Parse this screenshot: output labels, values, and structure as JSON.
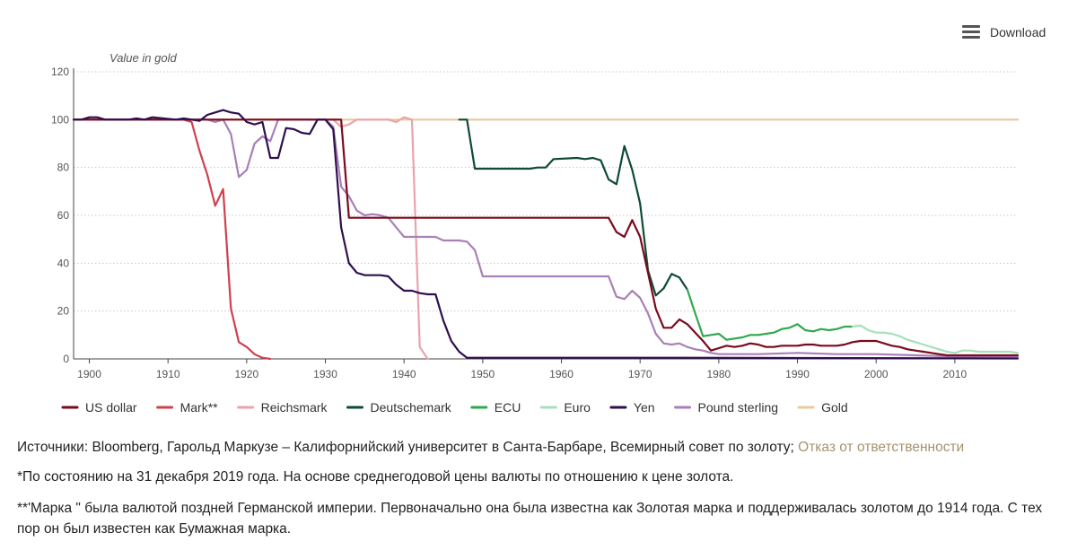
{
  "download": {
    "label": "Download",
    "icon": "hamburger-menu-icon"
  },
  "notes": {
    "sources_text": "Источники: Bloomberg, Гарольд Маркузе – Калифорнийский университет в Санта-Барбаре, Всемирный совет по золоту;",
    "disclaimer_link": "Отказ от ответственности",
    "footnote1": "*По состоянию на 31 декабря 2019 года. На основе среднегодовой цены валюты по отношению к цене золота.",
    "footnote2": "**'Марка \" была валютой поздней Германской империи. Первоначально она была известна как Золотая марка и поддерживалась золотом до 1914 года. С тех пор он был известен как Бумажная марка."
  },
  "chart_data": {
    "type": "line",
    "title": "",
    "ylabel": "Value in gold",
    "xlabel": "",
    "xlim": [
      1898,
      2018
    ],
    "ylim": [
      0,
      120
    ],
    "x_ticks": [
      1900,
      1910,
      1920,
      1930,
      1940,
      1950,
      1960,
      1970,
      1980,
      1990,
      2000,
      2010
    ],
    "y_ticks": [
      0,
      20,
      40,
      60,
      80,
      100,
      120
    ],
    "grid": "horizontal dotted",
    "legend_position": "bottom",
    "series": [
      {
        "name": "Gold",
        "color": "#e9c99d",
        "points": [
          [
            1898,
            100
          ],
          [
            2018,
            100
          ]
        ]
      },
      {
        "name": "Mark**",
        "color": "#d0404f",
        "points": [
          [
            1898,
            100
          ],
          [
            1912,
            100
          ],
          [
            1913,
            99
          ],
          [
            1914,
            87
          ],
          [
            1915,
            77
          ],
          [
            1916,
            64
          ],
          [
            1917,
            71
          ],
          [
            1918,
            21
          ],
          [
            1919,
            7
          ],
          [
            1920,
            5
          ],
          [
            1921,
            2
          ],
          [
            1922,
            0.5
          ],
          [
            1923,
            0
          ]
        ]
      },
      {
        "name": "Reichsmark",
        "color": "#eba3aa",
        "points": [
          [
            1924,
            100
          ],
          [
            1930,
            100
          ],
          [
            1931,
            100
          ],
          [
            1932,
            97
          ],
          [
            1933,
            98
          ],
          [
            1934,
            100
          ],
          [
            1938,
            100
          ],
          [
            1939,
            99
          ],
          [
            1940,
            101
          ],
          [
            1941,
            100
          ],
          [
            1942,
            5
          ],
          [
            1943,
            0
          ]
        ]
      },
      {
        "name": "Deutschemark",
        "color": "#0f4a33",
        "points": [
          [
            1947,
            100
          ],
          [
            1948,
            100
          ],
          [
            1949,
            79.5
          ],
          [
            1956,
            79.5
          ],
          [
            1957,
            80
          ],
          [
            1958,
            80
          ],
          [
            1959,
            83.5
          ],
          [
            1962,
            84
          ],
          [
            1963,
            83.5
          ],
          [
            1964,
            84
          ],
          [
            1965,
            83
          ],
          [
            1966,
            75
          ],
          [
            1967,
            73
          ],
          [
            1968,
            89
          ],
          [
            1969,
            79
          ],
          [
            1970,
            65
          ],
          [
            1971,
            37
          ],
          [
            1972,
            26.5
          ],
          [
            1973,
            29.5
          ],
          [
            1974,
            35.5
          ],
          [
            1975,
            34
          ],
          [
            1976,
            29
          ]
        ]
      },
      {
        "name": "ECU",
        "color": "#2fa84f",
        "points": [
          [
            1976,
            29
          ],
          [
            1977,
            19
          ],
          [
            1978,
            9.5
          ],
          [
            1979,
            10
          ],
          [
            1980,
            10.5
          ],
          [
            1981,
            8
          ],
          [
            1982,
            8.5
          ],
          [
            1983,
            9
          ],
          [
            1984,
            10
          ],
          [
            1985,
            10
          ],
          [
            1986,
            10.5
          ],
          [
            1987,
            11
          ],
          [
            1988,
            12.5
          ],
          [
            1989,
            13
          ],
          [
            1990,
            14.5
          ],
          [
            1991,
            12
          ],
          [
            1992,
            11.5
          ],
          [
            1993,
            12.5
          ],
          [
            1994,
            12
          ],
          [
            1995,
            12.5
          ],
          [
            1996,
            13.5
          ],
          [
            1997,
            13.5
          ]
        ]
      },
      {
        "name": "Euro",
        "color": "#a6e0b8",
        "points": [
          [
            1997,
            13.5
          ],
          [
            1998,
            14
          ],
          [
            1999,
            12
          ],
          [
            2000,
            11
          ],
          [
            2001,
            11
          ],
          [
            2002,
            10.5
          ],
          [
            2003,
            9.5
          ],
          [
            2004,
            8
          ],
          [
            2005,
            7
          ],
          [
            2006,
            6
          ],
          [
            2007,
            5
          ],
          [
            2008,
            4
          ],
          [
            2009,
            3
          ],
          [
            2010,
            2.5
          ],
          [
            2011,
            3.5
          ],
          [
            2012,
            3.5
          ],
          [
            2013,
            3
          ],
          [
            2014,
            3
          ],
          [
            2015,
            3
          ],
          [
            2016,
            3
          ],
          [
            2017,
            3
          ],
          [
            2018,
            2.5
          ]
        ]
      },
      {
        "name": "Pound sterling",
        "color": "#a880b8",
        "points": [
          [
            1898,
            100
          ],
          [
            1914,
            100
          ],
          [
            1915,
            100
          ],
          [
            1916,
            99
          ],
          [
            1917,
            100
          ],
          [
            1918,
            94
          ],
          [
            1919,
            76
          ],
          [
            1920,
            79
          ],
          [
            1921,
            90
          ],
          [
            1922,
            93
          ],
          [
            1923,
            91
          ],
          [
            1924,
            100
          ],
          [
            1930,
            100
          ],
          [
            1931,
            97
          ],
          [
            1932,
            72
          ],
          [
            1933,
            68
          ],
          [
            1934,
            62
          ],
          [
            1935,
            60
          ],
          [
            1936,
            60.5
          ],
          [
            1937,
            60
          ],
          [
            1938,
            59
          ],
          [
            1939,
            55
          ],
          [
            1940,
            51
          ],
          [
            1944,
            51
          ],
          [
            1945,
            49.5
          ],
          [
            1946,
            49.5
          ],
          [
            1947,
            49.5
          ],
          [
            1948,
            49
          ],
          [
            1949,
            45.5
          ],
          [
            1950,
            34.5
          ],
          [
            1966,
            34.5
          ],
          [
            1967,
            26
          ],
          [
            1968,
            25
          ],
          [
            1969,
            28.5
          ],
          [
            1970,
            25.5
          ],
          [
            1971,
            19
          ],
          [
            1972,
            10.5
          ],
          [
            1973,
            6.5
          ],
          [
            1974,
            6
          ],
          [
            1975,
            6.5
          ],
          [
            1976,
            5
          ],
          [
            1977,
            4
          ],
          [
            1978,
            3.5
          ],
          [
            1979,
            2.5
          ],
          [
            1980,
            2
          ],
          [
            1985,
            2
          ],
          [
            1990,
            2.5
          ],
          [
            1995,
            2
          ],
          [
            2000,
            2
          ],
          [
            2005,
            1.5
          ],
          [
            2010,
            1
          ],
          [
            2018,
            1
          ]
        ]
      },
      {
        "name": "US dollar",
        "color": "#7a0a1e",
        "points": [
          [
            1898,
            100
          ],
          [
            1930,
            100
          ],
          [
            1931,
            100
          ],
          [
            1932,
            100
          ],
          [
            1933,
            59
          ],
          [
            1966,
            59
          ],
          [
            1967,
            53
          ],
          [
            1968,
            51
          ],
          [
            1969,
            58
          ],
          [
            1970,
            51
          ],
          [
            1971,
            36
          ],
          [
            1972,
            21
          ],
          [
            1973,
            13
          ],
          [
            1974,
            13
          ],
          [
            1975,
            16.5
          ],
          [
            1976,
            14.5
          ],
          [
            1977,
            11
          ],
          [
            1978,
            7.5
          ],
          [
            1979,
            3.5
          ],
          [
            1980,
            4.5
          ],
          [
            1981,
            5.5
          ],
          [
            1982,
            5
          ],
          [
            1983,
            5.5
          ],
          [
            1984,
            6.5
          ],
          [
            1985,
            6
          ],
          [
            1986,
            5
          ],
          [
            1987,
            5
          ],
          [
            1988,
            5.5
          ],
          [
            1989,
            5.5
          ],
          [
            1990,
            5.5
          ],
          [
            1991,
            6
          ],
          [
            1992,
            6
          ],
          [
            1993,
            5.5
          ],
          [
            1994,
            5.5
          ],
          [
            1995,
            5.5
          ],
          [
            1996,
            6
          ],
          [
            1997,
            7
          ],
          [
            1998,
            7.5
          ],
          [
            1999,
            7.5
          ],
          [
            2000,
            7.5
          ],
          [
            2001,
            6.5
          ],
          [
            2002,
            5.5
          ],
          [
            2003,
            5
          ],
          [
            2004,
            4
          ],
          [
            2005,
            3.5
          ],
          [
            2006,
            3
          ],
          [
            2007,
            2.5
          ],
          [
            2008,
            2
          ],
          [
            2009,
            1.5
          ],
          [
            2010,
            1.5
          ],
          [
            2011,
            1.5
          ],
          [
            2012,
            1.5
          ],
          [
            2013,
            1.5
          ],
          [
            2014,
            1.5
          ],
          [
            2015,
            1.5
          ],
          [
            2016,
            1.5
          ],
          [
            2017,
            1.5
          ],
          [
            2018,
            1.5
          ]
        ]
      },
      {
        "name": "Yen",
        "color": "#2e0f4f",
        "points": [
          [
            1898,
            100
          ],
          [
            1899,
            100
          ],
          [
            1900,
            101
          ],
          [
            1901,
            101
          ],
          [
            1902,
            100
          ],
          [
            1905,
            100
          ],
          [
            1906,
            100.5
          ],
          [
            1907,
            100
          ],
          [
            1908,
            101
          ],
          [
            1911,
            100
          ],
          [
            1912,
            100.5
          ],
          [
            1913,
            100
          ],
          [
            1914,
            99.5
          ],
          [
            1915,
            102
          ],
          [
            1916,
            103
          ],
          [
            1917,
            104
          ],
          [
            1918,
            103
          ],
          [
            1919,
            102.5
          ],
          [
            1920,
            99
          ],
          [
            1921,
            98
          ],
          [
            1922,
            99
          ],
          [
            1923,
            84
          ],
          [
            1924,
            84
          ],
          [
            1925,
            96.5
          ],
          [
            1926,
            96
          ],
          [
            1927,
            94.5
          ],
          [
            1928,
            94
          ],
          [
            1929,
            100
          ],
          [
            1930,
            100
          ],
          [
            1931,
            96
          ],
          [
            1932,
            55
          ],
          [
            1933,
            40
          ],
          [
            1934,
            36
          ],
          [
            1935,
            35
          ],
          [
            1936,
            35
          ],
          [
            1937,
            35
          ],
          [
            1938,
            34.5
          ],
          [
            1939,
            31
          ],
          [
            1940,
            28.5
          ],
          [
            1941,
            28.5
          ],
          [
            1942,
            27.5
          ],
          [
            1943,
            27
          ],
          [
            1944,
            27
          ],
          [
            1945,
            16
          ],
          [
            1946,
            7.5
          ],
          [
            1947,
            3
          ],
          [
            1948,
            0.5
          ],
          [
            1955,
            0.5
          ],
          [
            1965,
            0.5
          ],
          [
            1975,
            0.5
          ],
          [
            2018,
            0.2
          ]
        ]
      }
    ],
    "legend": [
      {
        "name": "US dollar",
        "color": "#7a0a1e"
      },
      {
        "name": "Mark**",
        "color": "#d0404f"
      },
      {
        "name": "Reichsmark",
        "color": "#eba3aa"
      },
      {
        "name": "Deutschemark",
        "color": "#0f4a33"
      },
      {
        "name": "ECU",
        "color": "#2fa84f"
      },
      {
        "name": "Euro",
        "color": "#a6e0b8"
      },
      {
        "name": "Yen",
        "color": "#2e0f4f"
      },
      {
        "name": "Pound sterling",
        "color": "#a880b8"
      },
      {
        "name": "Gold",
        "color": "#e9c99d"
      }
    ],
    "axis_color": "#444444",
    "grid_color": "#c8c8c8",
    "tick_label_color": "#555555"
  }
}
